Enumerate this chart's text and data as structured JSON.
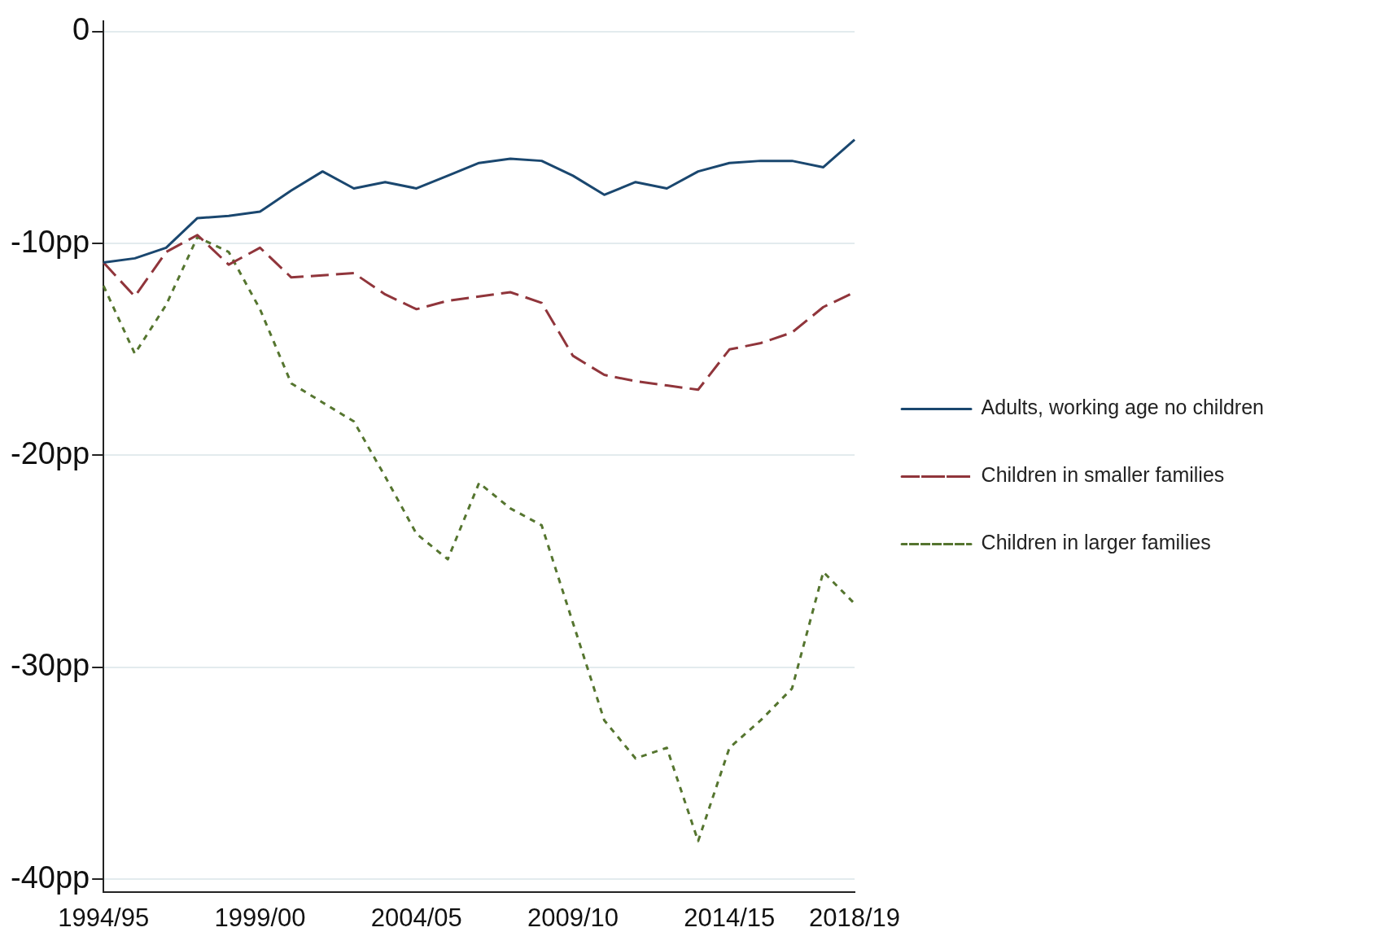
{
  "chart_data": {
    "type": "line",
    "categories": [
      "1994/95",
      null,
      null,
      null,
      null,
      "1999/00",
      null,
      null,
      null,
      null,
      "2004/05",
      null,
      null,
      null,
      null,
      "2009/10",
      null,
      null,
      null,
      null,
      "2014/15",
      null,
      null,
      null,
      "2018/19"
    ],
    "series": [
      {
        "name": "Adults, working age no children",
        "color": "#1a476f",
        "line_style": "solid",
        "values": [
          -10.9,
          -10.7,
          -10.2,
          -8.8,
          -8.7,
          -8.5,
          -7.5,
          -6.6,
          -7.4,
          -7.1,
          -7.4,
          -6.8,
          -6.2,
          -6.0,
          -6.1,
          -6.8,
          -7.7,
          -7.1,
          -7.4,
          -6.6,
          -6.2,
          -6.1,
          -6.1,
          -6.4,
          -5.1
        ]
      },
      {
        "name": "Children in smaller families",
        "color": "#90353b",
        "line_style": "dashed",
        "values": [
          -10.9,
          -12.5,
          -10.4,
          -9.6,
          -11.0,
          -10.2,
          -11.6,
          -11.5,
          -11.4,
          -12.4,
          -13.1,
          -12.7,
          -12.5,
          -12.3,
          -12.8,
          -15.3,
          -16.2,
          -16.5,
          -16.7,
          -16.9,
          -15.0,
          -14.7,
          -14.2,
          -13.0,
          -12.3
        ]
      },
      {
        "name": "Children in larger families",
        "color": "#55752f",
        "line_style": "dotted",
        "values": [
          -12.0,
          -15.2,
          -12.9,
          -9.7,
          -10.4,
          -13.1,
          -16.6,
          -17.5,
          -18.4,
          -21.0,
          -23.7,
          -24.9,
          -21.3,
          -22.5,
          -23.3,
          -27.9,
          -32.5,
          -34.3,
          -33.8,
          -38.2,
          -33.8,
          -32.5,
          -31.0,
          -25.5,
          -27.0
        ]
      }
    ],
    "ylim": [
      -40.6,
      0.5
    ],
    "yticks": [
      {
        "value": -40,
        "label": "-40pp"
      },
      {
        "value": -30,
        "label": "-30pp"
      },
      {
        "value": -20,
        "label": "-20pp"
      },
      {
        "value": -10,
        "label": "-10pp"
      },
      {
        "value": 0,
        "label": "0"
      }
    ],
    "grid": "y",
    "legend": "right",
    "marker": "none"
  }
}
